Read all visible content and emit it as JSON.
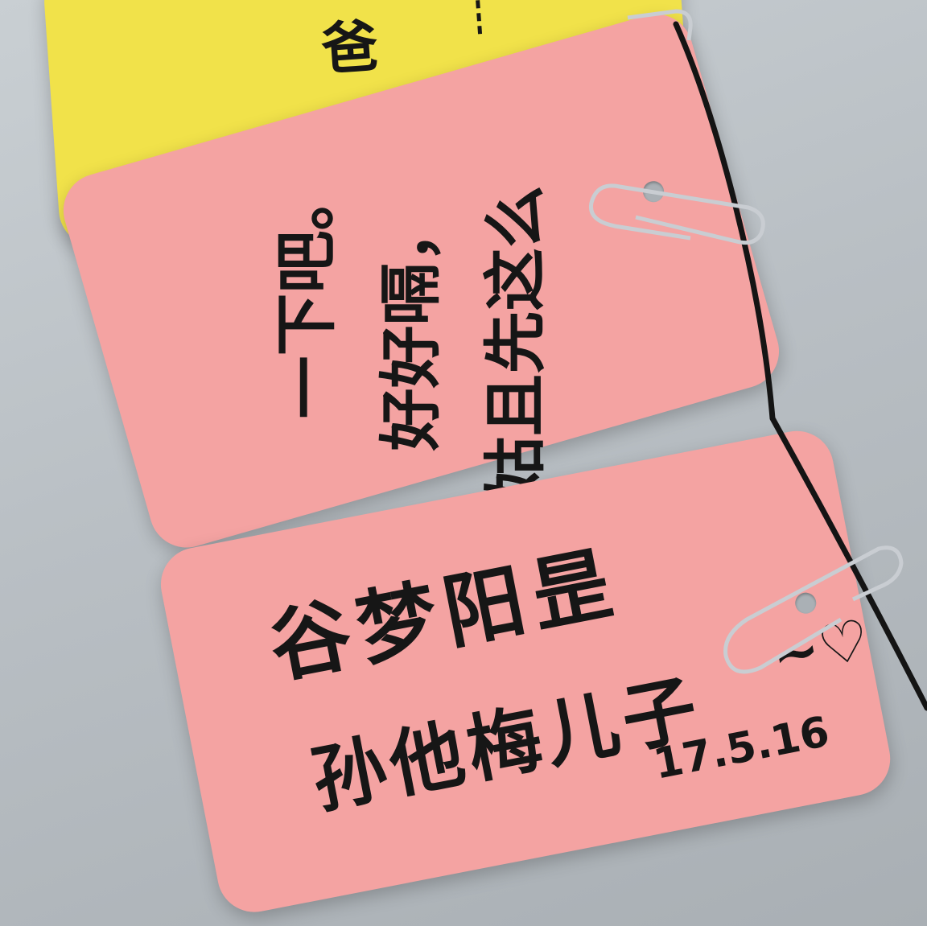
{
  "cards": {
    "front": {
      "line1": "谷梦阳昰",
      "line2": "孙他梅儿子",
      "tail": "~♡",
      "date": "17.5.16"
    },
    "middle": {
      "line1": "一下吧。",
      "line2": "好好嗝，",
      "line3": "姑且先这么"
    },
    "back": {
      "fragment": "爸"
    }
  },
  "colors": {
    "background": "#bcc2c6",
    "pink_card": "#f4a3a2",
    "yellow_card": "#f1e24a",
    "green_card": "#2f8a3a",
    "ink": "#161616",
    "string": "#141414",
    "clip": "#c9cdd2"
  }
}
